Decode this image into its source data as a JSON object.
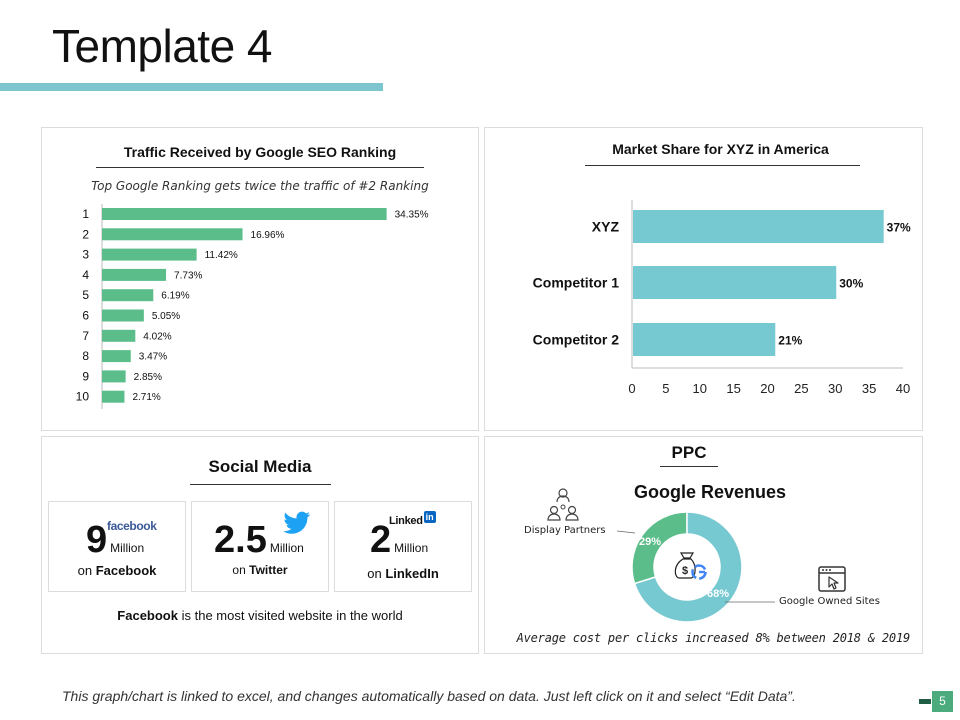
{
  "slide": {
    "title": "Template 4",
    "footer": "This graph/chart is linked to excel, and changes automatically based on data. Just left click on it and select “Edit Data”.",
    "page_number": "5",
    "accent_color": "#7ec6cf"
  },
  "seo": {
    "title": "Traffic Received by Google SEO Ranking",
    "subtitle": "Top Google Ranking gets twice the traffic of #2 Ranking"
  },
  "market": {
    "title": "Market Share for XYZ in America"
  },
  "social": {
    "title": "Social Media",
    "cards": [
      {
        "number": "9",
        "unit": "Million",
        "on": "on",
        "platform": "Facebook",
        "logo": "facebook"
      },
      {
        "number": "2.5",
        "unit": "Million",
        "on": "on",
        "platform": "Twitter"
      },
      {
        "number": "2",
        "unit": "Million",
        "on": "on",
        "platform": "LinkedIn",
        "logo": "Linked"
      }
    ],
    "note_bold": "Facebook",
    "note_rest": " is the most visited website in the world"
  },
  "ppc": {
    "title": "PPC",
    "subtitle": "Google Revenues",
    "display_partners_label": "Display Partners",
    "google_owned_label": "Google Owned Sites",
    "note": "Average cost per clicks increased 8% between 2018 & 2019"
  },
  "chart_data": [
    {
      "type": "bar",
      "orientation": "horizontal",
      "title": "Traffic Received by Google SEO Ranking",
      "subtitle": "Top Google Ranking gets twice the traffic of #2 Ranking",
      "categories": [
        "1",
        "2",
        "3",
        "4",
        "5",
        "6",
        "7",
        "8",
        "9",
        "10"
      ],
      "values": [
        34.35,
        16.96,
        11.42,
        7.73,
        6.19,
        5.05,
        4.02,
        3.47,
        2.85,
        2.71
      ],
      "labels": [
        "34.35%",
        "16.96%",
        "11.42%",
        "7.73%",
        "6.19%",
        "5.05%",
        "4.02%",
        "3.47%",
        "2.85%",
        "2.71%"
      ],
      "color": "#5bbd8a",
      "xlim": [
        0,
        35
      ]
    },
    {
      "type": "bar",
      "orientation": "horizontal",
      "title": "Market Share for XYZ in America",
      "categories": [
        "XYZ",
        "Competitor 1",
        "Competitor 2"
      ],
      "values": [
        37,
        30,
        21
      ],
      "labels": [
        "37%",
        "30%",
        "21%"
      ],
      "xticks": [
        "0",
        "5",
        "10",
        "15",
        "20",
        "25",
        "30",
        "35",
        "40"
      ],
      "xlim": [
        0,
        40
      ],
      "color": "#76c8d1"
    },
    {
      "type": "pie",
      "variant": "donut",
      "title": "Google Revenues",
      "categories": [
        "Display Partners",
        "Google Owned Sites"
      ],
      "values": [
        29,
        68
      ],
      "labels": [
        "29%",
        "68%"
      ],
      "colors": [
        "#5bbd8a",
        "#76c8d1"
      ]
    }
  ]
}
